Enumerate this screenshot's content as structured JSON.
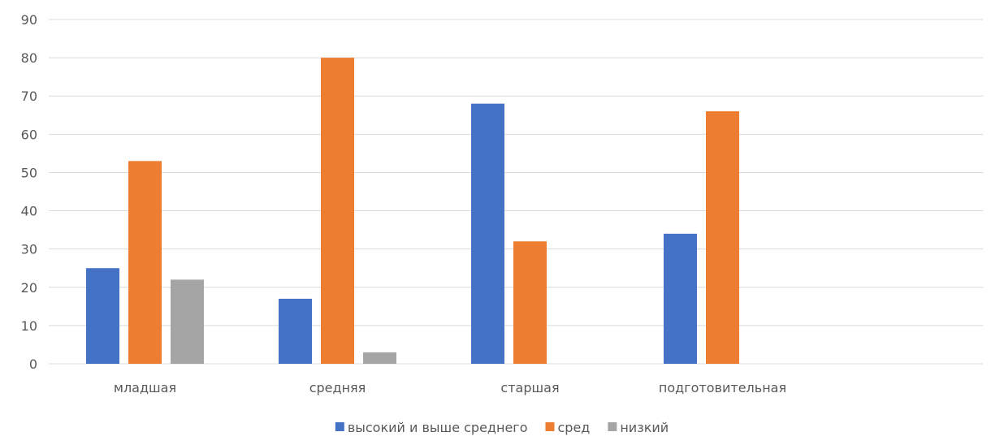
{
  "chart_data": {
    "type": "bar",
    "title": "",
    "xlabel": "",
    "ylabel": "",
    "categories": [
      "младшая",
      "средняя",
      "старшая",
      "подготовительная",
      ""
    ],
    "series": [
      {
        "name": "высокий и выше среднего",
        "color": "#4472C4",
        "values": [
          25,
          17,
          68,
          34,
          null
        ]
      },
      {
        "name": "сред",
        "color": "#ED7D31",
        "values": [
          53,
          80,
          32,
          66,
          null
        ]
      },
      {
        "name": "низкий",
        "color": "#A5A5A5",
        "values": [
          22,
          3,
          null,
          null,
          null
        ]
      }
    ],
    "ylim": [
      0,
      90
    ],
    "yticks": [
      0,
      10,
      20,
      30,
      40,
      50,
      60,
      70,
      80,
      90
    ],
    "grid": true,
    "legend_position": "bottom"
  }
}
